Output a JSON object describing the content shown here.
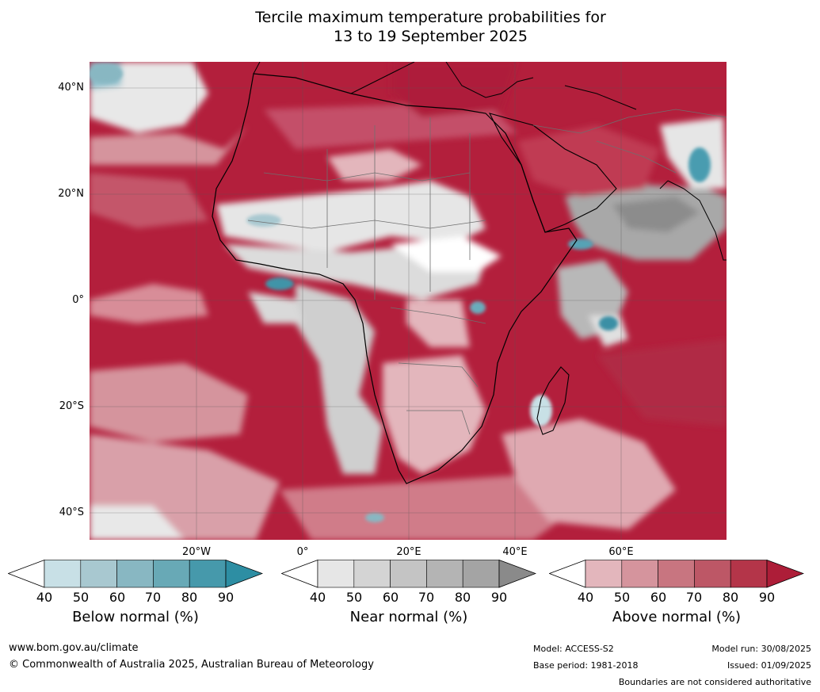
{
  "title": {
    "line1": "Tercile maximum temperature probabilities for",
    "line2": "13 to 19 September 2025"
  },
  "axes": {
    "lat_ticks": [
      "40°N",
      "20°N",
      "0°",
      "20°S",
      "40°S"
    ],
    "lon_ticks": [
      "20°W",
      "0°",
      "20°E",
      "40°E",
      "60°E"
    ]
  },
  "colorbars": [
    {
      "label": "Below normal (%)",
      "ticks": [
        "40",
        "50",
        "60",
        "70",
        "80",
        "90"
      ],
      "colors": [
        "#ffffff",
        "#c8e0e6",
        "#a8c8d0",
        "#88b7c2",
        "#68a9b6",
        "#4699ab",
        "#2d8ea3"
      ]
    },
    {
      "label": "Near normal (%)",
      "ticks": [
        "40",
        "50",
        "60",
        "70",
        "80",
        "90"
      ],
      "colors": [
        "#ffffff",
        "#e6e6e6",
        "#d4d4d4",
        "#c4c4c4",
        "#b4b4b4",
        "#a4a4a4",
        "#8a8a8a"
      ]
    },
    {
      "label": "Above normal (%)",
      "ticks": [
        "40",
        "50",
        "60",
        "70",
        "80",
        "90"
      ],
      "colors": [
        "#ffffff",
        "#e3b6bc",
        "#d5949d",
        "#c87580",
        "#bd5766",
        "#b43549",
        "#ad1d38"
      ]
    }
  ],
  "footer": {
    "website": "www.bom.gov.au/climate",
    "copyright": "© Commonwealth of Australia 2025, Australian Bureau of Meteorology",
    "model": "Model: ACCESS-S2",
    "base_period": "Base period: 1981-2018",
    "model_run": "Model run: 30/08/2025",
    "issued": "Issued: 01/09/2025",
    "disclaimer": "Boundaries are not considered authoritative"
  }
}
